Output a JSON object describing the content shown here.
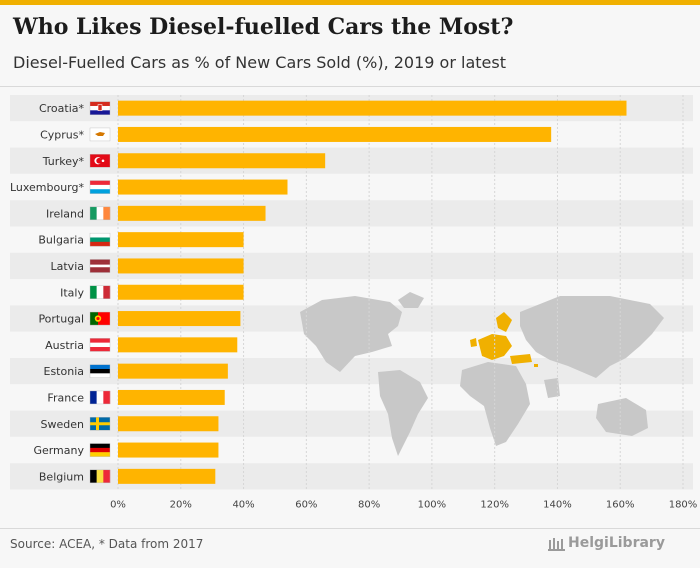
{
  "title": "Who Likes Diesel-fuelled Cars the Most?",
  "subtitle": "Diesel-Fuelled Cars as % of New Cars Sold (%), 2019 or latest",
  "source": "Source: ACEA, * Data from 2017",
  "brand": "HelgiLibrary",
  "colors": {
    "bar": "#ffb400",
    "accent": "#f0b000",
    "map_land": "#c8c8c8",
    "map_highlight": "#f0b000"
  },
  "chart_data": {
    "type": "bar",
    "orientation": "horizontal",
    "categories": [
      "Croatia*",
      "Cyprus*",
      "Turkey*",
      "Luxembourg*",
      "Ireland",
      "Bulgaria",
      "Latvia",
      "Italy",
      "Portugal",
      "Austria",
      "Estonia",
      "France",
      "Sweden",
      "Germany",
      "Belgium"
    ],
    "values": [
      162,
      138,
      66,
      54,
      47,
      40,
      40,
      40,
      39,
      38,
      35,
      34,
      32,
      32,
      31
    ],
    "xlim": [
      0,
      180
    ],
    "xticks": [
      0,
      20,
      40,
      60,
      80,
      100,
      120,
      140,
      160,
      180
    ],
    "xtick_labels": [
      "0%",
      "20%",
      "40%",
      "60%",
      "80%",
      "100%",
      "120%",
      "140%",
      "160%",
      "180%"
    ],
    "grid": true,
    "flags": [
      "croatia",
      "cyprus",
      "turkey",
      "luxembourg",
      "ireland",
      "bulgaria",
      "latvia",
      "italy",
      "portugal",
      "austria",
      "estonia",
      "france",
      "sweden",
      "germany",
      "belgium"
    ]
  }
}
